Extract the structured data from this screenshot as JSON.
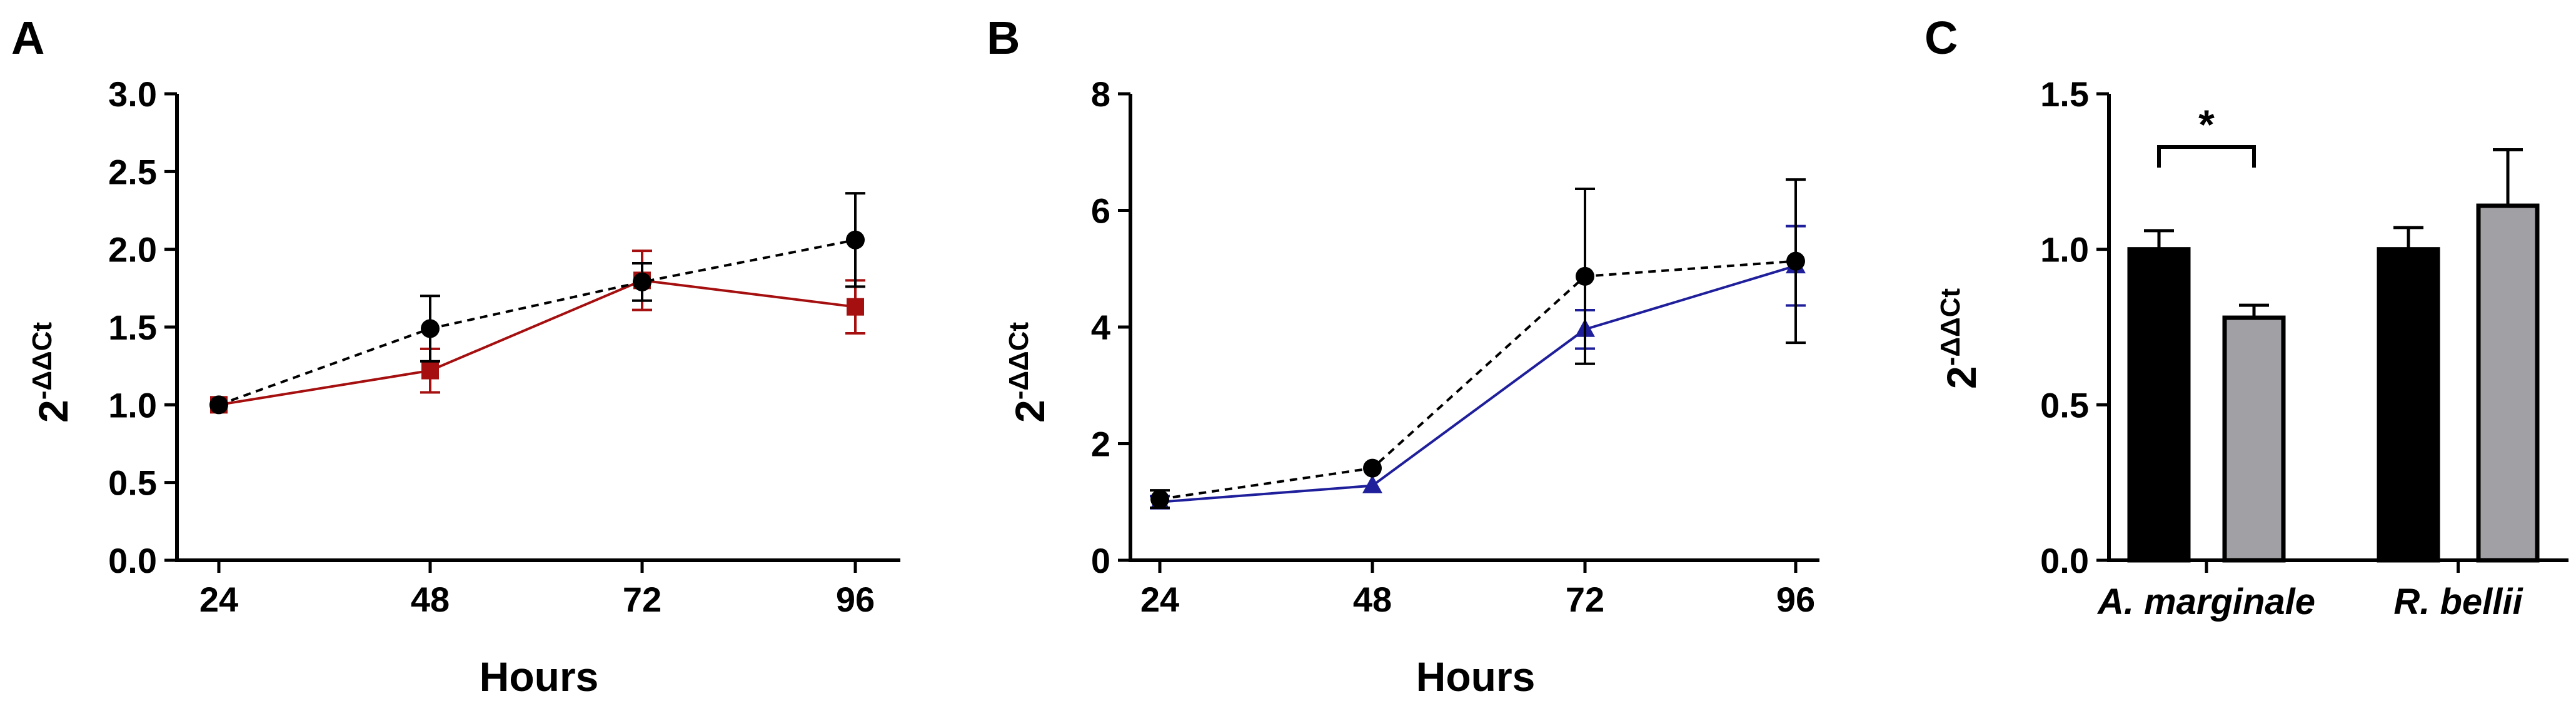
{
  "chart_data": [
    {
      "panel": "A",
      "type": "line",
      "xlabel": "Hours",
      "ylabel": "2-ΔΔCt",
      "ylabel_base": "2",
      "ylabel_sup": "-ΔΔCt",
      "x": [
        24,
        48,
        72,
        96
      ],
      "xticks": [
        "24",
        "48",
        "72",
        "96"
      ],
      "ylim": [
        0,
        3.0
      ],
      "yticks": [
        "0.0",
        "0.5",
        "1.0",
        "1.5",
        "2.0",
        "2.5",
        "3.0"
      ],
      "series": [
        {
          "color": "#000000",
          "marker": "circle",
          "dash": true,
          "values": [
            1.0,
            1.49,
            1.79,
            2.06
          ],
          "err": [
            0.0,
            0.21,
            0.12,
            0.3
          ]
        },
        {
          "color": "#a50f0f",
          "marker": "square",
          "dash": false,
          "values": [
            1.0,
            1.22,
            1.8,
            1.63
          ],
          "err": [
            0.0,
            0.14,
            0.19,
            0.17
          ]
        }
      ]
    },
    {
      "panel": "B",
      "type": "line",
      "xlabel": "Hours",
      "ylabel": "2-ΔΔCt",
      "ylabel_base": "2",
      "ylabel_sup": "-ΔΔCt",
      "x": [
        24,
        48,
        72,
        96
      ],
      "xticks": [
        "24",
        "48",
        "72",
        "96"
      ],
      "ylim": [
        0,
        8
      ],
      "yticks": [
        "0",
        "2",
        "4",
        "6",
        "8"
      ],
      "series": [
        {
          "color": "#000000",
          "marker": "circle",
          "dash": true,
          "values": [
            1.05,
            1.58,
            4.87,
            5.13
          ],
          "err": [
            0.15,
            0.0,
            1.5,
            1.4
          ]
        },
        {
          "color": "#1f1f9c",
          "marker": "triangle",
          "dash": false,
          "values": [
            1.0,
            1.28,
            3.96,
            5.05
          ],
          "err": [
            0.1,
            0.0,
            0.33,
            0.68
          ]
        }
      ]
    },
    {
      "panel": "C",
      "type": "bar",
      "ylabel": "2-ΔΔCt",
      "ylabel_base": "2",
      "ylabel_sup": "-ΔΔCt",
      "categories": [
        "A. marginale",
        "R. bellii"
      ],
      "ylim": [
        0,
        1.5
      ],
      "yticks": [
        "0.0",
        "0.5",
        "1.0",
        "1.5"
      ],
      "significance": "*",
      "series": [
        {
          "color": "#000000",
          "values": [
            1.0,
            1.0
          ],
          "err": [
            0.06,
            0.07
          ]
        },
        {
          "color": "#a0a0a5",
          "values": [
            0.78,
            1.14
          ],
          "err": [
            0.04,
            0.18
          ]
        }
      ]
    }
  ]
}
